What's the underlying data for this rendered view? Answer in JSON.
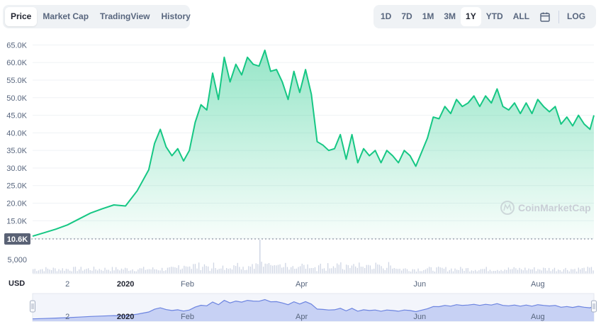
{
  "tabs": [
    "Price",
    "Market Cap",
    "TradingView",
    "History"
  ],
  "active_tab": "Price",
  "ranges": [
    "1D",
    "7D",
    "1M",
    "3M",
    "1Y",
    "YTD",
    "ALL"
  ],
  "active_range": "1Y",
  "log_label": "LOG",
  "watermark": "CoinMarketCap",
  "current_price_label": "10.6K",
  "volume_tick_label": "5,000",
  "currency_label": "USD",
  "colors": {
    "line": "#16c784",
    "fill_top": "#16c784",
    "navigator": "#6c84e0",
    "label_bg": "#5a6275"
  },
  "chart_data": {
    "type": "area",
    "title": "",
    "xlabel": "",
    "ylabel": "",
    "ylim": [
      8000,
      66500
    ],
    "y_ticks": [
      "10.0K",
      "15.0K",
      "20.0K",
      "25.0K",
      "30.0K",
      "35.0K",
      "40.0K",
      "45.0K",
      "50.0K",
      "55.0K",
      "60.0K",
      "65.0K"
    ],
    "y_tick_values": [
      10000,
      15000,
      20000,
      25000,
      30000,
      35000,
      40000,
      45000,
      50000,
      55000,
      60000,
      65000
    ],
    "x_ticks": [
      "2",
      "2020",
      "Feb",
      "Apr",
      "Jun",
      "Aug"
    ],
    "x_tick_days": [
      18,
      48,
      80,
      139,
      200,
      261
    ],
    "grid": true,
    "series": [
      {
        "days": [
          0,
          6,
          12,
          18,
          24,
          30,
          36,
          42,
          48,
          54,
          60,
          63,
          66,
          69,
          72,
          75,
          78,
          81,
          84,
          87,
          90,
          93,
          96,
          99,
          102,
          105,
          108,
          111,
          114,
          117,
          120,
          123,
          126,
          129,
          132,
          135,
          138,
          141,
          144,
          147,
          150,
          153,
          156,
          159,
          162,
          165,
          168,
          171,
          174,
          177,
          180,
          183,
          186,
          189,
          192,
          195,
          198,
          201,
          204,
          207,
          210,
          213,
          216,
          219,
          222,
          225,
          228,
          231,
          234,
          237,
          240,
          243,
          246,
          249,
          252,
          255,
          258,
          261,
          264,
          267,
          270,
          273,
          276,
          279,
          282,
          285,
          288,
          290
        ],
        "values": [
          10600,
          11600,
          12600,
          13800,
          15500,
          17200,
          18400,
          19500,
          19200,
          23500,
          29500,
          37000,
          41000,
          36000,
          33500,
          35500,
          32000,
          35000,
          43000,
          48000,
          46500,
          57000,
          49500,
          61500,
          54500,
          59500,
          56500,
          61500,
          59500,
          59000,
          63500,
          57500,
          58000,
          54500,
          49500,
          57500,
          51500,
          58000,
          51000,
          37500,
          36500,
          35000,
          35500,
          39500,
          32500,
          39500,
          31500,
          35500,
          33500,
          35000,
          31500,
          35000,
          33500,
          31500,
          35000,
          33500,
          30500,
          34500,
          38500,
          44500,
          44000,
          47500,
          45500,
          49500,
          47500,
          48500,
          50500,
          47500,
          50500,
          48500,
          52500,
          47500,
          46500,
          48500,
          45500,
          48500,
          45500,
          49500,
          47500,
          46000,
          47500,
          42500,
          44500,
          42000,
          45000,
          42500,
          41000,
          45000
        ]
      }
    ]
  }
}
